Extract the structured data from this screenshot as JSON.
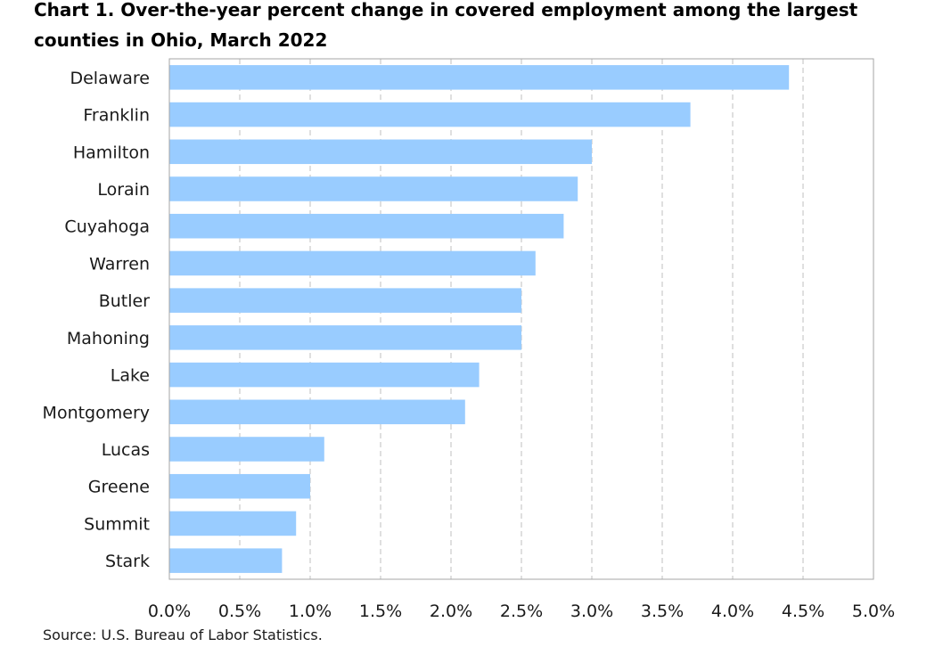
{
  "chart_data": {
    "type": "bar",
    "orientation": "horizontal",
    "title_lines": [
      "Chart 1. Over-the-year percent change in covered employment among the largest",
      "counties in Ohio, March 2022"
    ],
    "categories": [
      "Delaware",
      "Franklin",
      "Hamilton",
      "Lorain",
      "Cuyahoga",
      "Warren",
      "Butler",
      "Mahoning",
      "Lake",
      "Montgomery",
      "Lucas",
      "Greene",
      "Summit",
      "Stark"
    ],
    "values": [
      4.4,
      3.7,
      3.0,
      2.9,
      2.8,
      2.6,
      2.5,
      2.5,
      2.2,
      2.1,
      1.1,
      1.0,
      0.9,
      0.8
    ],
    "unit": "%",
    "xlim": [
      0,
      5.0
    ],
    "x_ticks": [
      0,
      0.5,
      1.0,
      1.5,
      2.0,
      2.5,
      3.0,
      3.5,
      4.0,
      4.5,
      5.0
    ],
    "x_tick_labels": [
      "0.0%",
      "0.5%",
      "1.0%",
      "1.5%",
      "2.0%",
      "2.5%",
      "3.0%",
      "3.5%",
      "4.0%",
      "4.5%",
      "5.0%"
    ],
    "grid": "vertical dashed",
    "legend": "none",
    "colors": {
      "bar": "#99ccff",
      "grid": "#bfbfbf",
      "frame": "#a6a6a6"
    },
    "source": "Source: U.S. Bureau of Labor Statistics."
  }
}
